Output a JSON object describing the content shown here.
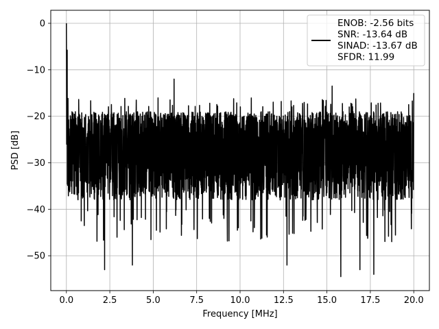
{
  "chart_data": {
    "type": "line",
    "title": "",
    "xlabel": "Frequency [MHz]",
    "ylabel": "PSD [dB]",
    "xlim": [
      -0.9,
      20.9
    ],
    "ylim": [
      -57.5,
      2.8
    ],
    "x_ticks": [
      0.0,
      2.5,
      5.0,
      7.5,
      10.0,
      12.5,
      15.0,
      17.5,
      20.0
    ],
    "x_tick_labels": [
      "0.0",
      "2.5",
      "5.0",
      "7.5",
      "10.0",
      "12.5",
      "15.0",
      "17.5",
      "20.0"
    ],
    "y_ticks": [
      0,
      -10,
      -20,
      -30,
      -40,
      -50
    ],
    "y_tick_labels": [
      "0",
      "−10",
      "−20",
      "−30",
      "−40",
      "−50"
    ],
    "grid": true,
    "legend_position": "top-right",
    "series": [
      {
        "color": "#000000",
        "x_start": 0.0,
        "x_end": 20.0,
        "noise_floor_band": [
          -38,
          -19
        ],
        "dc_peak": {
          "x": 0.0,
          "y": 0.0
        },
        "max_spur": {
          "x": 6.2,
          "y": -12.0
        },
        "notable_minima": [
          {
            "x": 2.2,
            "y": -53.0
          },
          {
            "x": 3.8,
            "y": -52.0
          },
          {
            "x": 12.7,
            "y": -52.0
          },
          {
            "x": 15.8,
            "y": -54.5
          },
          {
            "x": 17.7,
            "y": -54.0
          },
          {
            "x": 16.9,
            "y": -53.0
          }
        ]
      }
    ],
    "legend": {
      "lines": [
        "ENOB: -2.56 bits",
        "SNR: -13.64 dB",
        "SINAD: -13.67 dB",
        "SFDR: 11.99"
      ],
      "line_color": "#000000"
    }
  }
}
